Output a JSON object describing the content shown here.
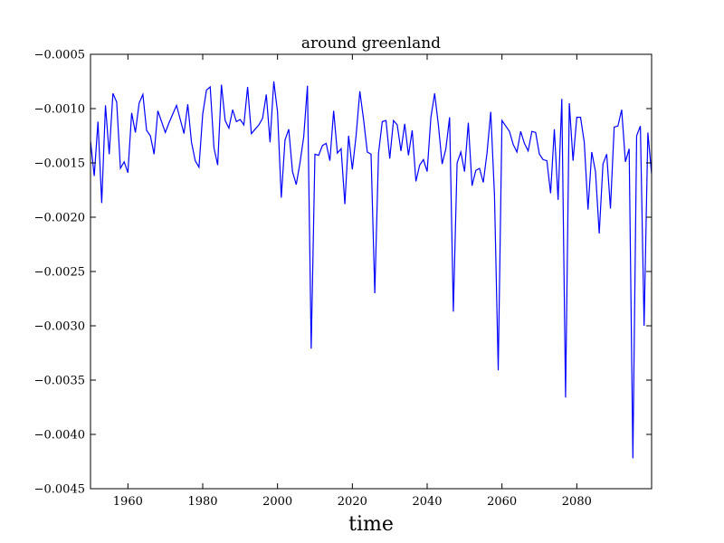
{
  "chart_data": {
    "type": "line",
    "title": "around greenland",
    "xlabel": "time",
    "ylabel": "",
    "xlim": [
      1950,
      2100
    ],
    "ylim": [
      -0.0045,
      -0.0005
    ],
    "xticks": [
      1960,
      1980,
      2000,
      2020,
      2040,
      2060,
      2080
    ],
    "xtick_labels": [
      "1960",
      "1980",
      "2000",
      "2020",
      "2040",
      "2060",
      "2080"
    ],
    "yticks": [
      -0.0005,
      -0.001,
      -0.0015,
      -0.002,
      -0.0025,
      -0.003,
      -0.0035,
      -0.004,
      -0.0045
    ],
    "ytick_labels": [
      "−0.0005",
      "−0.0010",
      "−0.0015",
      "−0.0020",
      "−0.0025",
      "−0.0030",
      "−0.0035",
      "−0.0040",
      "−0.0045"
    ],
    "grid": false,
    "line_color": "#0000ff",
    "series": [
      {
        "x": [
          1950,
          1951,
          1952,
          1953,
          1954,
          1955,
          1956,
          1957,
          1958,
          1959,
          1960,
          1961,
          1962,
          1963,
          1964,
          1965,
          1966,
          1967,
          1968,
          1969,
          1970,
          1971,
          1972,
          1973,
          1974,
          1975,
          1976,
          1977,
          1978,
          1979,
          1980,
          1981,
          1982,
          1983,
          1984,
          1985,
          1986,
          1987,
          1988,
          1989,
          1990,
          1991,
          1992,
          1993,
          1994,
          1995,
          1996,
          1997,
          1998,
          1999,
          2000,
          2001,
          2002,
          2003,
          2004,
          2005,
          2006,
          2007,
          2008,
          2009,
          2010,
          2011,
          2012,
          2013,
          2014,
          2015,
          2016,
          2017,
          2018,
          2019,
          2020,
          2021,
          2022,
          2023,
          2024,
          2025,
          2026,
          2027,
          2028,
          2029,
          2030,
          2031,
          2032,
          2033,
          2034,
          2035,
          2036,
          2037,
          2038,
          2039,
          2040,
          2041,
          2042,
          2043,
          2044,
          2045,
          2046,
          2047,
          2048,
          2049,
          2050,
          2051,
          2052,
          2053,
          2054,
          2055,
          2056,
          2057,
          2058,
          2059,
          2060,
          2061,
          2062,
          2063,
          2064,
          2065,
          2066,
          2067,
          2068,
          2069,
          2070,
          2071,
          2072,
          2073,
          2074,
          2075,
          2076,
          2077,
          2078,
          2079,
          2080,
          2081,
          2082,
          2083,
          2084,
          2085,
          2086,
          2087,
          2088,
          2089,
          2090,
          2091,
          2092,
          2093,
          2094,
          2095,
          2096,
          2097,
          2098,
          2099,
          2100
        ],
        "values": [
          -0.0013,
          -0.00162,
          -0.00112,
          -0.00187,
          -0.00097,
          -0.00142,
          -0.00086,
          -0.00094,
          -0.00155,
          -0.00149,
          -0.00159,
          -0.00104,
          -0.00122,
          -0.00095,
          -0.00087,
          -0.0012,
          -0.00125,
          -0.00142,
          -0.00102,
          -0.00112,
          -0.00122,
          -0.00113,
          -0.00105,
          -0.00097,
          -0.0011,
          -0.00123,
          -0.00096,
          -0.00131,
          -0.00148,
          -0.00154,
          -0.00105,
          -0.00083,
          -0.0008,
          -0.00136,
          -0.00152,
          -0.00078,
          -0.00111,
          -0.00118,
          -0.00101,
          -0.00112,
          -0.0011,
          -0.00115,
          -0.0008,
          -0.00123,
          -0.00119,
          -0.00115,
          -0.00109,
          -0.00087,
          -0.00131,
          -0.00075,
          -0.00103,
          -0.00182,
          -0.00129,
          -0.00119,
          -0.00158,
          -0.0017,
          -0.0015,
          -0.00126,
          -0.00079,
          -0.00321,
          -0.00142,
          -0.00143,
          -0.00134,
          -0.00132,
          -0.00148,
          -0.00102,
          -0.00141,
          -0.00137,
          -0.00188,
          -0.00125,
          -0.00156,
          -0.00125,
          -0.00084,
          -0.0011,
          -0.0014,
          -0.00142,
          -0.0027,
          -0.00141,
          -0.00112,
          -0.00111,
          -0.00146,
          -0.00111,
          -0.00115,
          -0.00139,
          -0.00114,
          -0.00143,
          -0.0012,
          -0.00167,
          -0.00152,
          -0.00147,
          -0.00158,
          -0.00108,
          -0.00086,
          -0.00115,
          -0.00151,
          -0.00137,
          -0.00108,
          -0.00287,
          -0.0015,
          -0.0014,
          -0.00158,
          -0.00113,
          -0.00171,
          -0.00157,
          -0.00155,
          -0.00168,
          -0.00141,
          -0.00103,
          -0.0018,
          -0.00341,
          -0.00111,
          -0.00116,
          -0.00121,
          -0.00133,
          -0.0014,
          -0.00121,
          -0.00132,
          -0.00139,
          -0.00121,
          -0.00122,
          -0.00142,
          -0.00147,
          -0.00148,
          -0.00178,
          -0.00119,
          -0.00184,
          -0.00091,
          -0.00366,
          -0.00095,
          -0.00148,
          -0.00108,
          -0.00108,
          -0.00131,
          -0.00193,
          -0.0014,
          -0.00158,
          -0.00215,
          -0.00151,
          -0.00142,
          -0.00192,
          -0.00117,
          -0.00116,
          -0.00101,
          -0.00149,
          -0.00137,
          -0.00422,
          -0.00125,
          -0.00116,
          -0.003,
          -0.00122,
          -0.0016
        ]
      }
    ]
  }
}
